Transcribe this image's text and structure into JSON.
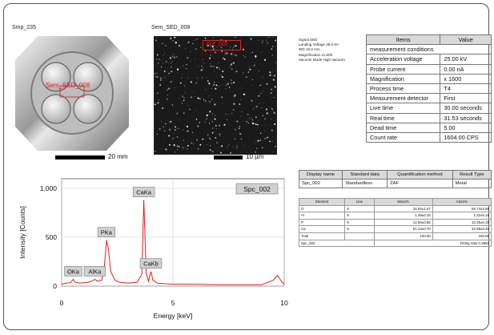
{
  "stage": {
    "title": "Smp_235",
    "overlay_label": "Sem_SED_008",
    "scale": "20 mm"
  },
  "sem": {
    "title": "Sem_SED_008",
    "overlay_label": "Spc_002",
    "scale": "10 µm"
  },
  "signal_info": [
    "Signal SED",
    "Landing Voltage 25.0 kV",
    "WD 10.0 mm",
    "Magnification x1,600",
    "Vacuum Mode High Vacuum"
  ],
  "conditions_table": {
    "headers": [
      "Items",
      "Value"
    ],
    "section": "measurement conditions",
    "rows": [
      [
        "Acceleration voltage",
        "25.00 kV"
      ],
      [
        "Probe current",
        "0.00 nA"
      ],
      [
        "Magnification",
        "x 1600"
      ],
      [
        "Process time",
        "T4"
      ],
      [
        "Measurement detector",
        "First"
      ],
      [
        "Live time",
        "30.00 seconds"
      ],
      [
        "Real time",
        "31.53 seconds"
      ],
      [
        "Dead time",
        "5.00"
      ],
      [
        "Count rate",
        "1604.00 CPS"
      ]
    ]
  },
  "quant_table": {
    "headers": [
      "Display name",
      "Standard data",
      "Quantification method",
      "Result Type"
    ],
    "rows": [
      [
        "Spc_002",
        "Standardless",
        "ZAF",
        "Metal"
      ]
    ]
  },
  "element_table": {
    "headers": [
      "Element",
      "Line",
      "Mass%",
      "Atom%"
    ],
    "rows": [
      [
        "O",
        "K",
        "34.92±1.67",
        "55.74±2.66"
      ],
      [
        "Al",
        "K",
        "1.39±0.15",
        "1.32±0.15"
      ],
      [
        "P",
        "K",
        "12.56±0.58",
        "10.35±0.31"
      ],
      [
        "Ca",
        "K",
        "51.14±0.70",
        "32.59±0.45"
      ],
      [
        "Total",
        "",
        "100.00",
        "100.00"
      ]
    ],
    "footer_left": "Spc_002",
    "footer_right": "Fitting ratio 0.2883"
  },
  "chart_data": {
    "type": "line",
    "title": "Spc_002",
    "xlabel": "Energy [keV]",
    "ylabel": "Intensity [Counts]",
    "xlim": [
      0,
      10
    ],
    "ylim": [
      0,
      1000
    ],
    "xticks": [
      "0",
      "5",
      "10"
    ],
    "yticks": [
      "0",
      "500",
      "1,000"
    ],
    "series_color": "#e0201e",
    "series": [
      {
        "x": [
          0.0,
          0.2,
          0.4,
          0.52,
          0.6,
          0.8,
          1.0,
          1.2,
          1.4,
          1.49,
          1.6,
          1.8,
          1.9,
          2.0,
          2.01,
          2.1,
          2.2,
          2.4,
          2.6,
          3.0,
          3.4,
          3.6,
          3.69,
          3.8,
          3.9,
          4.01,
          4.1,
          4.3,
          5.0,
          6.0,
          7.0,
          8.0,
          9.0,
          9.5,
          9.7,
          9.9,
          10.0
        ],
        "y": [
          20,
          30,
          35,
          70,
          40,
          30,
          35,
          40,
          55,
          70,
          50,
          60,
          150,
          420,
          470,
          380,
          150,
          60,
          40,
          30,
          40,
          120,
          880,
          130,
          50,
          150,
          60,
          30,
          20,
          20,
          15,
          15,
          15,
          60,
          110,
          40,
          20
        ]
      }
    ],
    "peak_labels": [
      {
        "label": "OKa",
        "x": 0.52
      },
      {
        "label": "AlKa",
        "x": 1.49
      },
      {
        "label": "PKa",
        "x": 2.01
      },
      {
        "label": "CaKa",
        "x": 3.69
      },
      {
        "label": "CaKb",
        "x": 4.01
      }
    ],
    "grid": true
  }
}
